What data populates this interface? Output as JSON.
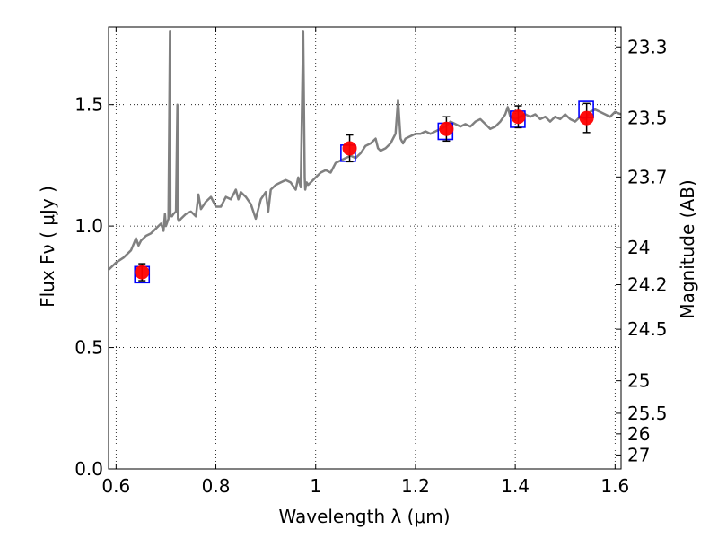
{
  "chart_data": {
    "type": "scatter",
    "xlabel": "Wavelength  λ (μm)",
    "ylabel_left": "Flux  Fν ( μJy )",
    "ylabel_right": "Magnitude (AB)",
    "xlim": [
      0.585,
      1.612
    ],
    "ylim": [
      0.0,
      1.82
    ],
    "grid": true,
    "x_ticks": [
      {
        "value": 0.6,
        "label": "0.6"
      },
      {
        "value": 0.8,
        "label": "0.8"
      },
      {
        "value": 1.0,
        "label": "1"
      },
      {
        "value": 1.2,
        "label": "1.2"
      },
      {
        "value": 1.4,
        "label": "1.4"
      },
      {
        "value": 1.6,
        "label": "1.6"
      }
    ],
    "y_ticks": [
      {
        "value": 0.0,
        "label": "0.0"
      },
      {
        "value": 0.5,
        "label": "0.5"
      },
      {
        "value": 1.0,
        "label": "1.0"
      },
      {
        "value": 1.5,
        "label": "1.5"
      }
    ],
    "right_ticks": [
      {
        "mag": 23.3,
        "label": "23.3"
      },
      {
        "mag": 23.5,
        "label": "23.5"
      },
      {
        "mag": 23.7,
        "label": "23.7"
      },
      {
        "mag": 24.0,
        "label": "24"
      },
      {
        "mag": 24.2,
        "label": "24.2"
      },
      {
        "mag": 24.5,
        "label": "24.5"
      },
      {
        "mag": 25.0,
        "label": "25"
      },
      {
        "mag": 25.5,
        "label": "25.5"
      },
      {
        "mag": 26.0,
        "label": "26"
      },
      {
        "mag": 27.0,
        "label": "27"
      }
    ],
    "series": [
      {
        "kind": "line",
        "color": "#808080",
        "x": [
          0.585,
          0.6,
          0.615,
          0.63,
          0.64,
          0.645,
          0.65,
          0.66,
          0.67,
          0.68,
          0.69,
          0.695,
          0.698,
          0.7,
          0.705,
          0.708,
          0.709,
          0.712,
          0.715,
          0.72,
          0.723,
          0.724,
          0.726,
          0.73,
          0.74,
          0.75,
          0.76,
          0.765,
          0.77,
          0.78,
          0.79,
          0.8,
          0.81,
          0.82,
          0.83,
          0.84,
          0.845,
          0.85,
          0.86,
          0.87,
          0.88,
          0.89,
          0.9,
          0.905,
          0.91,
          0.92,
          0.93,
          0.94,
          0.95,
          0.96,
          0.965,
          0.97,
          0.975,
          0.978,
          0.979,
          0.982,
          0.985,
          0.99,
          1.0,
          1.01,
          1.02,
          1.03,
          1.04,
          1.05,
          1.06,
          1.07,
          1.08,
          1.09,
          1.1,
          1.11,
          1.12,
          1.125,
          1.13,
          1.14,
          1.15,
          1.16,
          1.165,
          1.17,
          1.175,
          1.18,
          1.19,
          1.2,
          1.21,
          1.22,
          1.23,
          1.24,
          1.25,
          1.26,
          1.27,
          1.28,
          1.29,
          1.3,
          1.31,
          1.32,
          1.33,
          1.34,
          1.35,
          1.36,
          1.37,
          1.38,
          1.385,
          1.39,
          1.4,
          1.41,
          1.42,
          1.43,
          1.44,
          1.45,
          1.46,
          1.47,
          1.48,
          1.49,
          1.5,
          1.51,
          1.52,
          1.53,
          1.54,
          1.55,
          1.56,
          1.57,
          1.58,
          1.59,
          1.6,
          1.612
        ],
        "y": [
          0.82,
          0.85,
          0.87,
          0.9,
          0.95,
          0.92,
          0.94,
          0.96,
          0.97,
          0.99,
          1.01,
          0.98,
          1.05,
          1.0,
          1.03,
          1.8,
          1.04,
          1.04,
          1.05,
          1.06,
          1.5,
          1.03,
          1.02,
          1.03,
          1.05,
          1.06,
          1.04,
          1.13,
          1.07,
          1.1,
          1.12,
          1.08,
          1.08,
          1.12,
          1.11,
          1.15,
          1.11,
          1.14,
          1.12,
          1.09,
          1.03,
          1.11,
          1.14,
          1.06,
          1.15,
          1.17,
          1.18,
          1.19,
          1.18,
          1.15,
          1.2,
          1.16,
          1.8,
          1.2,
          1.15,
          1.18,
          1.17,
          1.18,
          1.2,
          1.22,
          1.23,
          1.22,
          1.26,
          1.27,
          1.28,
          1.29,
          1.28,
          1.3,
          1.33,
          1.34,
          1.36,
          1.32,
          1.31,
          1.32,
          1.34,
          1.38,
          1.52,
          1.36,
          1.34,
          1.36,
          1.37,
          1.38,
          1.38,
          1.39,
          1.38,
          1.39,
          1.4,
          1.41,
          1.43,
          1.42,
          1.41,
          1.42,
          1.41,
          1.43,
          1.44,
          1.42,
          1.4,
          1.41,
          1.43,
          1.46,
          1.49,
          1.45,
          1.44,
          1.45,
          1.46,
          1.45,
          1.46,
          1.44,
          1.45,
          1.43,
          1.45,
          1.44,
          1.46,
          1.44,
          1.43,
          1.45,
          1.44,
          1.47,
          1.48,
          1.47,
          1.46,
          1.45,
          1.47,
          1.46
        ]
      },
      {
        "kind": "squares",
        "color": "#0000ff",
        "x": [
          0.652,
          1.065,
          1.26,
          1.405,
          1.542
        ],
        "y": [
          0.8,
          1.3,
          1.39,
          1.44,
          1.48
        ]
      },
      {
        "kind": "points",
        "color": "#ff0000",
        "x": [
          0.652,
          1.068,
          1.262,
          1.406,
          1.543
        ],
        "y": [
          0.81,
          1.32,
          1.4,
          1.45,
          1.445
        ],
        "err": [
          0.035,
          0.055,
          0.05,
          0.045,
          0.06
        ]
      }
    ]
  }
}
